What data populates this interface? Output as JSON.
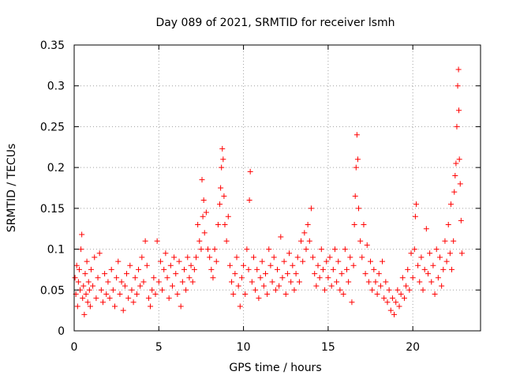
{
  "chart_data": {
    "type": "scatter",
    "title": "Day 089 of 2021, SRMTID for receiver lsmh",
    "xlabel": "GPS time / hours",
    "ylabel": "SRMTID / TECUs",
    "xlim": [
      0,
      24
    ],
    "ylim": [
      0,
      0.35
    ],
    "xticks": [
      0,
      5,
      10,
      15,
      20
    ],
    "xtick_labels": [
      "0",
      "5",
      "10",
      "15",
      "20"
    ],
    "yticks": [
      0,
      0.05,
      0.1,
      0.15,
      0.2,
      0.25,
      0.3,
      0.35
    ],
    "ytick_labels": [
      "0",
      "0.05",
      "0.1",
      "0.15",
      "0.2",
      "0.25",
      "0.3",
      "0.35"
    ],
    "grid": true,
    "marker": "plus",
    "color": "#ff0000",
    "series": [
      {
        "name": "SRMTID",
        "points": [
          [
            0.05,
            0.065
          ],
          [
            0.1,
            0.045
          ],
          [
            0.15,
            0.08
          ],
          [
            0.2,
            0.03
          ],
          [
            0.25,
            0.06
          ],
          [
            0.3,
            0.075
          ],
          [
            0.35,
            0.05
          ],
          [
            0.4,
            0.1
          ],
          [
            0.45,
            0.118
          ],
          [
            0.5,
            0.04
          ],
          [
            0.55,
            0.055
          ],
          [
            0.6,
            0.02
          ],
          [
            0.65,
            0.07
          ],
          [
            0.7,
            0.045
          ],
          [
            0.75,
            0.085
          ],
          [
            0.8,
            0.035
          ],
          [
            0.85,
            0.06
          ],
          [
            0.9,
            0.05
          ],
          [
            0.95,
            0.03
          ],
          [
            1.0,
            0.075
          ],
          [
            1.1,
            0.055
          ],
          [
            1.2,
            0.09
          ],
          [
            1.3,
            0.04
          ],
          [
            1.4,
            0.065
          ],
          [
            1.5,
            0.095
          ],
          [
            1.6,
            0.05
          ],
          [
            1.7,
            0.035
          ],
          [
            1.8,
            0.07
          ],
          [
            1.9,
            0.045
          ],
          [
            2.0,
            0.06
          ],
          [
            2.1,
            0.04
          ],
          [
            2.2,
            0.075
          ],
          [
            2.3,
            0.05
          ],
          [
            2.4,
            0.03
          ],
          [
            2.5,
            0.065
          ],
          [
            2.6,
            0.085
          ],
          [
            2.7,
            0.045
          ],
          [
            2.8,
            0.06
          ],
          [
            2.9,
            0.025
          ],
          [
            3.0,
            0.055
          ],
          [
            3.1,
            0.07
          ],
          [
            3.2,
            0.04
          ],
          [
            3.3,
            0.08
          ],
          [
            3.4,
            0.05
          ],
          [
            3.5,
            0.035
          ],
          [
            3.6,
            0.065
          ],
          [
            3.7,
            0.045
          ],
          [
            3.8,
            0.075
          ],
          [
            3.9,
            0.055
          ],
          [
            4.0,
            0.09
          ],
          [
            4.1,
            0.06
          ],
          [
            4.2,
            0.11
          ],
          [
            4.3,
            0.08
          ],
          [
            4.4,
            0.04
          ],
          [
            4.5,
            0.03
          ],
          [
            4.6,
            0.05
          ],
          [
            4.7,
            0.065
          ],
          [
            4.8,
            0.045
          ],
          [
            4.9,
            0.11
          ],
          [
            5.0,
            0.06
          ],
          [
            5.1,
            0.085
          ],
          [
            5.2,
            0.05
          ],
          [
            5.3,
            0.075
          ],
          [
            5.4,
            0.095
          ],
          [
            5.5,
            0.065
          ],
          [
            5.6,
            0.04
          ],
          [
            5.7,
            0.08
          ],
          [
            5.8,
            0.055
          ],
          [
            5.9,
            0.09
          ],
          [
            6.0,
            0.07
          ],
          [
            6.1,
            0.045
          ],
          [
            6.2,
            0.085
          ],
          [
            6.3,
            0.03
          ],
          [
            6.4,
            0.06
          ],
          [
            6.5,
            0.075
          ],
          [
            6.6,
            0.05
          ],
          [
            6.7,
            0.09
          ],
          [
            6.8,
            0.065
          ],
          [
            6.9,
            0.08
          ],
          [
            7.0,
            0.06
          ],
          [
            7.1,
            0.075
          ],
          [
            7.2,
            0.09
          ],
          [
            7.3,
            0.13
          ],
          [
            7.4,
            0.11
          ],
          [
            7.5,
            0.1
          ],
          [
            7.55,
            0.185
          ],
          [
            7.6,
            0.14
          ],
          [
            7.65,
            0.16
          ],
          [
            7.7,
            0.12
          ],
          [
            7.8,
            0.145
          ],
          [
            7.9,
            0.1
          ],
          [
            8.0,
            0.09
          ],
          [
            8.1,
            0.075
          ],
          [
            8.2,
            0.065
          ],
          [
            8.3,
            0.1
          ],
          [
            8.4,
            0.085
          ],
          [
            8.5,
            0.13
          ],
          [
            8.6,
            0.155
          ],
          [
            8.65,
            0.175
          ],
          [
            8.7,
            0.2
          ],
          [
            8.75,
            0.223
          ],
          [
            8.8,
            0.21
          ],
          [
            8.85,
            0.165
          ],
          [
            8.9,
            0.13
          ],
          [
            9.0,
            0.11
          ],
          [
            9.1,
            0.14
          ],
          [
            9.2,
            0.08
          ],
          [
            9.3,
            0.06
          ],
          [
            9.4,
            0.045
          ],
          [
            9.5,
            0.07
          ],
          [
            9.6,
            0.09
          ],
          [
            9.7,
            0.055
          ],
          [
            9.8,
            0.03
          ],
          [
            9.9,
            0.065
          ],
          [
            10.0,
            0.08
          ],
          [
            10.1,
            0.045
          ],
          [
            10.2,
            0.1
          ],
          [
            10.3,
            0.075
          ],
          [
            10.35,
            0.16
          ],
          [
            10.4,
            0.195
          ],
          [
            10.5,
            0.06
          ],
          [
            10.6,
            0.09
          ],
          [
            10.7,
            0.05
          ],
          [
            10.8,
            0.075
          ],
          [
            10.9,
            0.04
          ],
          [
            11.0,
            0.065
          ],
          [
            11.1,
            0.085
          ],
          [
            11.2,
            0.055
          ],
          [
            11.3,
            0.07
          ],
          [
            11.4,
            0.045
          ],
          [
            11.5,
            0.1
          ],
          [
            11.6,
            0.08
          ],
          [
            11.7,
            0.06
          ],
          [
            11.8,
            0.09
          ],
          [
            11.9,
            0.05
          ],
          [
            12.0,
            0.075
          ],
          [
            12.1,
            0.055
          ],
          [
            12.2,
            0.115
          ],
          [
            12.3,
            0.065
          ],
          [
            12.4,
            0.085
          ],
          [
            12.5,
            0.045
          ],
          [
            12.6,
            0.07
          ],
          [
            12.7,
            0.095
          ],
          [
            12.8,
            0.06
          ],
          [
            12.9,
            0.08
          ],
          [
            13.0,
            0.05
          ],
          [
            13.1,
            0.07
          ],
          [
            13.2,
            0.09
          ],
          [
            13.3,
            0.06
          ],
          [
            13.4,
            0.11
          ],
          [
            13.5,
            0.085
          ],
          [
            13.6,
            0.12
          ],
          [
            13.7,
            0.1
          ],
          [
            13.8,
            0.13
          ],
          [
            13.9,
            0.11
          ],
          [
            14.0,
            0.15
          ],
          [
            14.1,
            0.09
          ],
          [
            14.2,
            0.07
          ],
          [
            14.3,
            0.055
          ],
          [
            14.4,
            0.08
          ],
          [
            14.5,
            0.065
          ],
          [
            14.6,
            0.1
          ],
          [
            14.7,
            0.075
          ],
          [
            14.8,
            0.05
          ],
          [
            14.9,
            0.085
          ],
          [
            15.0,
            0.065
          ],
          [
            15.1,
            0.09
          ],
          [
            15.2,
            0.055
          ],
          [
            15.3,
            0.075
          ],
          [
            15.4,
            0.1
          ],
          [
            15.5,
            0.06
          ],
          [
            15.6,
            0.085
          ],
          [
            15.7,
            0.05
          ],
          [
            15.8,
            0.07
          ],
          [
            15.9,
            0.045
          ],
          [
            16.0,
            0.1
          ],
          [
            16.1,
            0.075
          ],
          [
            16.2,
            0.06
          ],
          [
            16.3,
            0.09
          ],
          [
            16.4,
            0.035
          ],
          [
            16.5,
            0.08
          ],
          [
            16.55,
            0.13
          ],
          [
            16.6,
            0.165
          ],
          [
            16.65,
            0.2
          ],
          [
            16.7,
            0.24
          ],
          [
            16.75,
            0.21
          ],
          [
            16.8,
            0.15
          ],
          [
            16.9,
            0.11
          ],
          [
            17.0,
            0.09
          ],
          [
            17.1,
            0.13
          ],
          [
            17.2,
            0.07
          ],
          [
            17.3,
            0.105
          ],
          [
            17.4,
            0.06
          ],
          [
            17.5,
            0.085
          ],
          [
            17.6,
            0.05
          ],
          [
            17.7,
            0.075
          ],
          [
            17.8,
            0.06
          ],
          [
            17.9,
            0.045
          ],
          [
            18.0,
            0.07
          ],
          [
            18.1,
            0.055
          ],
          [
            18.2,
            0.085
          ],
          [
            18.3,
            0.04
          ],
          [
            18.4,
            0.06
          ],
          [
            18.5,
            0.035
          ],
          [
            18.6,
            0.05
          ],
          [
            18.7,
            0.025
          ],
          [
            18.8,
            0.04
          ],
          [
            18.9,
            0.02
          ],
          [
            19.0,
            0.035
          ],
          [
            19.1,
            0.05
          ],
          [
            19.2,
            0.03
          ],
          [
            19.3,
            0.045
          ],
          [
            19.4,
            0.065
          ],
          [
            19.5,
            0.04
          ],
          [
            19.6,
            0.055
          ],
          [
            19.7,
            0.075
          ],
          [
            19.8,
            0.05
          ],
          [
            19.9,
            0.095
          ],
          [
            20.0,
            0.065
          ],
          [
            20.1,
            0.1
          ],
          [
            20.15,
            0.14
          ],
          [
            20.2,
            0.155
          ],
          [
            20.3,
            0.08
          ],
          [
            20.4,
            0.06
          ],
          [
            20.5,
            0.09
          ],
          [
            20.6,
            0.05
          ],
          [
            20.7,
            0.075
          ],
          [
            20.8,
            0.125
          ],
          [
            20.9,
            0.07
          ],
          [
            21.0,
            0.095
          ],
          [
            21.1,
            0.06
          ],
          [
            21.2,
            0.08
          ],
          [
            21.3,
            0.045
          ],
          [
            21.4,
            0.1
          ],
          [
            21.5,
            0.065
          ],
          [
            21.6,
            0.09
          ],
          [
            21.7,
            0.055
          ],
          [
            21.8,
            0.075
          ],
          [
            21.9,
            0.11
          ],
          [
            22.0,
            0.085
          ],
          [
            22.1,
            0.13
          ],
          [
            22.2,
            0.095
          ],
          [
            22.25,
            0.155
          ],
          [
            22.3,
            0.075
          ],
          [
            22.4,
            0.11
          ],
          [
            22.45,
            0.17
          ],
          [
            22.5,
            0.19
          ],
          [
            22.55,
            0.205
          ],
          [
            22.6,
            0.25
          ],
          [
            22.65,
            0.3
          ],
          [
            22.7,
            0.32
          ],
          [
            22.72,
            0.27
          ],
          [
            22.75,
            0.21
          ],
          [
            22.8,
            0.18
          ],
          [
            22.85,
            0.135
          ],
          [
            22.9,
            0.095
          ]
        ]
      }
    ]
  }
}
